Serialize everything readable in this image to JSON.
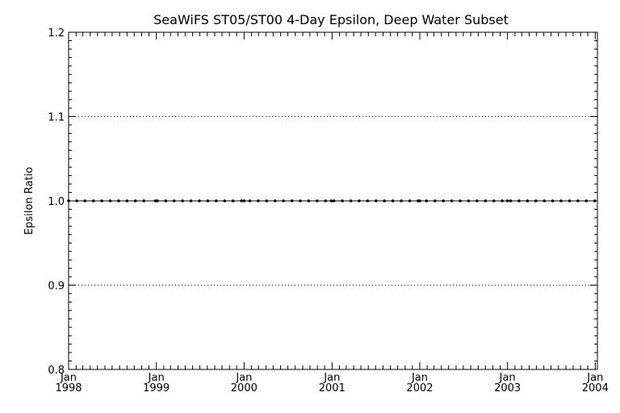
{
  "chart_data": {
    "type": "scatter",
    "title": "SeaWiFS ST05/ST00 4-Day Epsilon, Deep Water Subset",
    "xlabel": "",
    "ylabel": "Epsilon Ratio",
    "xlim": [
      "1998-01-01",
      "2004-01-10"
    ],
    "ylim": [
      0.8,
      1.2
    ],
    "y_ticks": [
      "0.8",
      "0.9",
      "1.0",
      "1.1",
      "1.2"
    ],
    "x_ticks": [
      {
        "date": "1998-01-01",
        "month": "Jan",
        "year": "1998"
      },
      {
        "date": "1999-01-01",
        "month": "Jan",
        "year": "1999"
      },
      {
        "date": "2000-01-01",
        "month": "Jan",
        "year": "2000"
      },
      {
        "date": "2001-01-01",
        "month": "Jan",
        "year": "2001"
      },
      {
        "date": "2002-01-01",
        "month": "Jan",
        "year": "2002"
      },
      {
        "date": "2003-01-01",
        "month": "Jan",
        "year": "2003"
      },
      {
        "date": "2004-01-01",
        "month": "Jan",
        "year": "2004"
      }
    ],
    "reference_line": 1.0,
    "gridlines": "horizontal dotted at 0.9 and 1.1",
    "series": [
      {
        "marker": "dot",
        "color": "#000000",
        "points": [
          {
            "x": "1998-01-01",
            "y": 1.0
          },
          {
            "x": "1998-02-04",
            "y": 1.0
          },
          {
            "x": "1998-03-10",
            "y": 1.0
          },
          {
            "x": "1998-04-14",
            "y": 1.0
          },
          {
            "x": "1998-05-19",
            "y": 1.0
          },
          {
            "x": "1998-06-23",
            "y": 1.0
          },
          {
            "x": "1998-07-28",
            "y": 1.0
          },
          {
            "x": "1998-09-01",
            "y": 1.0
          },
          {
            "x": "1998-10-06",
            "y": 1.0
          },
          {
            "x": "1998-11-10",
            "y": 1.0
          },
          {
            "x": "1998-12-28",
            "y": 1.0
          },
          {
            "x": "1999-01-05",
            "y": 1.0
          },
          {
            "x": "1999-02-09",
            "y": 1.0
          },
          {
            "x": "1999-03-16",
            "y": 1.0
          },
          {
            "x": "1999-04-20",
            "y": 1.0
          },
          {
            "x": "1999-05-25",
            "y": 1.0
          },
          {
            "x": "1999-06-29",
            "y": 1.0
          },
          {
            "x": "1999-08-03",
            "y": 1.0
          },
          {
            "x": "1999-09-07",
            "y": 1.0
          },
          {
            "x": "1999-10-12",
            "y": 1.0
          },
          {
            "x": "1999-11-16",
            "y": 1.0
          },
          {
            "x": "1999-12-21",
            "y": 1.0
          },
          {
            "x": "2000-01-01",
            "y": 1.0
          },
          {
            "x": "2000-01-25",
            "y": 1.0
          },
          {
            "x": "2000-02-29",
            "y": 1.0
          },
          {
            "x": "2000-04-04",
            "y": 1.0
          },
          {
            "x": "2000-05-09",
            "y": 1.0
          },
          {
            "x": "2000-06-13",
            "y": 1.0
          },
          {
            "x": "2000-07-18",
            "y": 1.0
          },
          {
            "x": "2000-08-22",
            "y": 1.0
          },
          {
            "x": "2000-09-26",
            "y": 1.0
          },
          {
            "x": "2000-10-31",
            "y": 1.0
          },
          {
            "x": "2000-12-05",
            "y": 1.0
          },
          {
            "x": "2000-12-29",
            "y": 1.0
          },
          {
            "x": "2001-01-09",
            "y": 1.0
          },
          {
            "x": "2001-02-13",
            "y": 1.0
          },
          {
            "x": "2001-03-20",
            "y": 1.0
          },
          {
            "x": "2001-04-24",
            "y": 1.0
          },
          {
            "x": "2001-05-29",
            "y": 1.0
          },
          {
            "x": "2001-07-03",
            "y": 1.0
          },
          {
            "x": "2001-08-07",
            "y": 1.0
          },
          {
            "x": "2001-09-11",
            "y": 1.0
          },
          {
            "x": "2001-10-16",
            "y": 1.0
          },
          {
            "x": "2001-11-20",
            "y": 1.0
          },
          {
            "x": "2001-12-25",
            "y": 1.0
          },
          {
            "x": "2002-01-01",
            "y": 1.0
          },
          {
            "x": "2002-01-29",
            "y": 1.0
          },
          {
            "x": "2002-03-05",
            "y": 1.0
          },
          {
            "x": "2002-04-09",
            "y": 1.0
          },
          {
            "x": "2002-05-14",
            "y": 1.0
          },
          {
            "x": "2002-06-18",
            "y": 1.0
          },
          {
            "x": "2002-07-23",
            "y": 1.0
          },
          {
            "x": "2002-08-27",
            "y": 1.0
          },
          {
            "x": "2002-10-01",
            "y": 1.0
          },
          {
            "x": "2002-11-05",
            "y": 1.0
          },
          {
            "x": "2002-12-10",
            "y": 1.0
          },
          {
            "x": "2003-01-01",
            "y": 1.0
          },
          {
            "x": "2003-01-14",
            "y": 1.0
          },
          {
            "x": "2003-02-18",
            "y": 1.0
          },
          {
            "x": "2003-03-25",
            "y": 1.0
          },
          {
            "x": "2003-04-29",
            "y": 1.0
          },
          {
            "x": "2003-06-03",
            "y": 1.0
          },
          {
            "x": "2003-07-08",
            "y": 1.0
          },
          {
            "x": "2003-08-12",
            "y": 1.0
          },
          {
            "x": "2003-09-16",
            "y": 1.0
          },
          {
            "x": "2003-10-21",
            "y": 1.0
          },
          {
            "x": "2003-11-25",
            "y": 1.0
          },
          {
            "x": "2003-12-30",
            "y": 1.0
          }
        ]
      }
    ]
  }
}
